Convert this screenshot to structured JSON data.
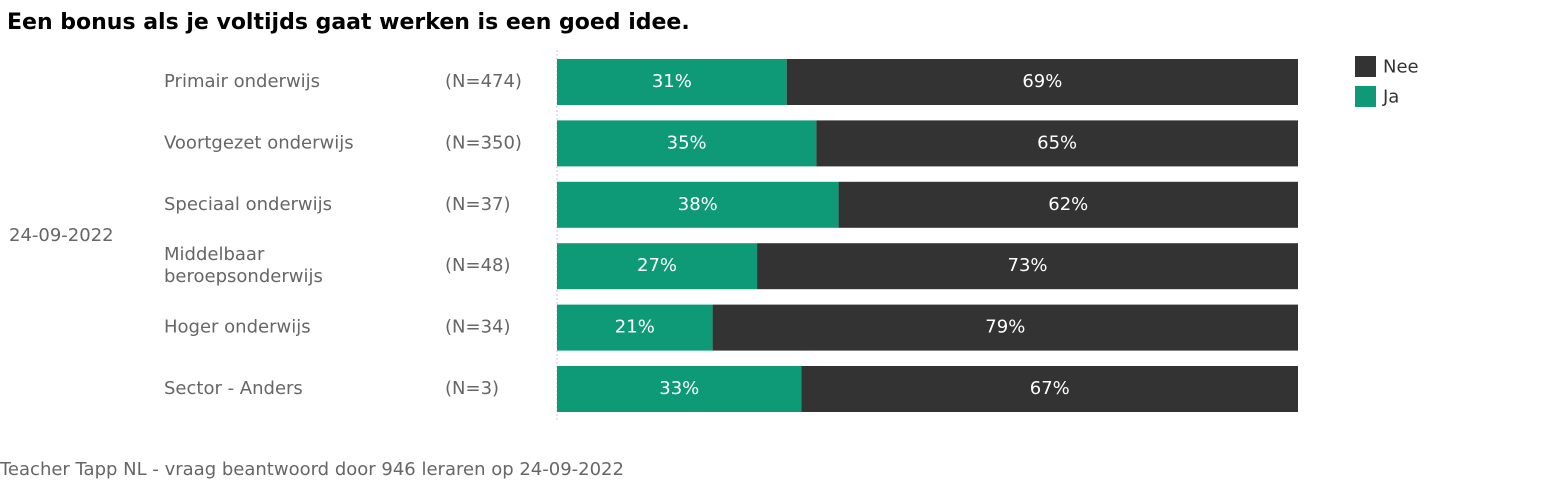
{
  "title": "Een bonus als je voltijds gaat werken is een goed idee.",
  "footer": "Teacher Tapp NL - vraag beantwoord door 946 leraren op 24-09-2022",
  "chart_data": {
    "type": "bar",
    "orientation": "horizontal",
    "stacked": true,
    "percent": true,
    "group_label": "24-09-2022",
    "categories": [
      {
        "label": [
          "Primair onderwijs"
        ],
        "n": "(N=474)"
      },
      {
        "label": [
          "Voortgezet onderwijs"
        ],
        "n": "(N=350)"
      },
      {
        "label": [
          "Speciaal onderwijs"
        ],
        "n": "(N=37)"
      },
      {
        "label": [
          "Middelbaar",
          "beroepsonderwijs"
        ],
        "n": "(N=48)"
      },
      {
        "label": [
          "Hoger onderwijs"
        ],
        "n": "(N=34)"
      },
      {
        "label": [
          "Sector - Anders"
        ],
        "n": "(N=3)"
      }
    ],
    "series": [
      {
        "name": "Ja",
        "color": "#0e9a77",
        "values": [
          31,
          35,
          38,
          27,
          21,
          33
        ]
      },
      {
        "name": "Nee",
        "color": "#333333",
        "values": [
          69,
          65,
          62,
          73,
          79,
          67
        ]
      }
    ],
    "legend": {
      "position": "top-right",
      "order": [
        "Nee",
        "Ja"
      ]
    },
    "xlim": [
      0,
      100
    ],
    "grid": false
  }
}
